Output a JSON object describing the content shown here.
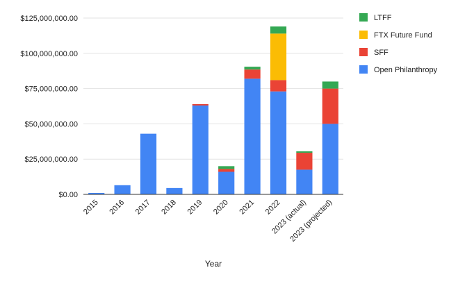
{
  "chart_data": {
    "type": "bar",
    "stacked": true,
    "title": "",
    "xlabel": "Year",
    "ylabel": "",
    "ylim": [
      0,
      125000000
    ],
    "yticks": [
      {
        "value": 0,
        "label": "$0.00"
      },
      {
        "value": 25000000,
        "label": "$25,000,000.00"
      },
      {
        "value": 50000000,
        "label": "$50,000,000.00"
      },
      {
        "value": 75000000,
        "label": "$75,000,000.00"
      },
      {
        "value": 100000000,
        "label": "$100,000,000.00"
      },
      {
        "value": 125000000,
        "label": "$125,000,000.00"
      }
    ],
    "grid": true,
    "legend_position": "right",
    "categories": [
      "2015",
      "2016",
      "2017",
      "2018",
      "2019",
      "2020",
      "2021",
      "2022",
      "2023 (actual)",
      "2023 (projected)"
    ],
    "series": [
      {
        "name": "Open Philanthropy",
        "color": "#4285F4",
        "values": [
          1000000,
          6500000,
          43000000,
          4500000,
          63000000,
          16000000,
          82000000,
          73000000,
          17500000,
          50000000
        ]
      },
      {
        "name": "SFF",
        "color": "#EA4335",
        "values": [
          0,
          0,
          0,
          0,
          1000000,
          2000000,
          6500000,
          8000000,
          12000000,
          25000000
        ]
      },
      {
        "name": "FTX Future Fund",
        "color": "#FBBC04",
        "values": [
          0,
          0,
          0,
          0,
          0,
          0,
          0,
          33000000,
          0,
          0
        ]
      },
      {
        "name": "LTFF",
        "color": "#34A853",
        "values": [
          0,
          0,
          0,
          0,
          0,
          2000000,
          2000000,
          5000000,
          1000000,
          5000000
        ]
      }
    ],
    "legend": [
      "LTFF",
      "FTX Future Fund",
      "SFF",
      "Open Philanthropy"
    ]
  }
}
